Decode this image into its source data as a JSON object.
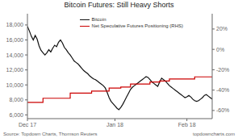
{
  "chart_data": {
    "type": "line",
    "title": "Bitcoin Futures: Still Heavy Shorts",
    "annotations": [
      "Source: Topdown Charts, Thomson Reuters",
      "topdowncharts.com"
    ],
    "xlim": [
      0,
      95
    ],
    "xticks": [
      {
        "value": 0,
        "label": "Dec 17"
      },
      {
        "value": 45,
        "label": "Jan 18"
      },
      {
        "value": 82,
        "label": "Feb 18"
      }
    ],
    "ylim": [
      5500,
      19500
    ],
    "yticks": [
      {
        "value": 6000,
        "label": "6,000"
      },
      {
        "value": 8000,
        "label": "8,000"
      },
      {
        "value": 10000,
        "label": "10,000"
      },
      {
        "value": 12000,
        "label": "12,000"
      },
      {
        "value": 14000,
        "label": "14,000"
      },
      {
        "value": 16000,
        "label": "16,000"
      },
      {
        "value": 18000,
        "label": "18,000"
      }
    ],
    "y2lim": [
      -68,
      35
    ],
    "y2ticks": [
      {
        "value": 20,
        "label": "20%"
      },
      {
        "value": 0,
        "label": "0%"
      },
      {
        "value": -20,
        "label": "-20%"
      },
      {
        "value": -40,
        "label": "-40%"
      },
      {
        "value": -60,
        "label": "-60%"
      }
    ],
    "legend": "upper right",
    "series": [
      {
        "name": "Bitcoin",
        "color": "#111111",
        "x": [
          0,
          1,
          2,
          3,
          4,
          5,
          6,
          7,
          8,
          9,
          10,
          11,
          12,
          13,
          14,
          15,
          16,
          17,
          18,
          19,
          20,
          21,
          22,
          23,
          24,
          25,
          26,
          27,
          28,
          29,
          30,
          31,
          32,
          33,
          34,
          35,
          36,
          37,
          38,
          39,
          40,
          41,
          42,
          43,
          44,
          45,
          46,
          47,
          48,
          49,
          50,
          51,
          52,
          53,
          54,
          55,
          56,
          57,
          58,
          59,
          60,
          61,
          62,
          63,
          64,
          65,
          66,
          67,
          68,
          69,
          70,
          71,
          72,
          73,
          74,
          75,
          76,
          77,
          78,
          79,
          80,
          81,
          82,
          83,
          84,
          85,
          86,
          87,
          88,
          89,
          90,
          91,
          92,
          93,
          94,
          95
        ],
        "values": [
          17800,
          17200,
          16500,
          16000,
          16600,
          16100,
          15200,
          14600,
          14300,
          14000,
          14300,
          14700,
          14400,
          14900,
          15300,
          15100,
          15700,
          16000,
          15600,
          15000,
          14700,
          14300,
          14000,
          13600,
          13200,
          13000,
          12800,
          12500,
          12200,
          11900,
          11700,
          11500,
          11200,
          11000,
          10800,
          10700,
          10500,
          10300,
          10100,
          9900,
          9600,
          9000,
          8300,
          7800,
          7500,
          7200,
          6900,
          6700,
          7000,
          7400,
          7900,
          8400,
          8900,
          9400,
          9700,
          9900,
          10100,
          10300,
          10500,
          10700,
          10900,
          11100,
          11000,
          10700,
          10400,
          10200,
          10000,
          9800,
          10400,
          10900,
          10700,
          10500,
          10200,
          9900,
          9700,
          9500,
          9300,
          9100,
          8900,
          8700,
          8500,
          8300,
          8400,
          8600,
          8400,
          8100,
          7900,
          7800,
          7900,
          8100,
          8300,
          8600,
          8700,
          8500,
          8300,
          8100
        ]
      },
      {
        "name": "Net Speculative Futures Positioning (RHS)",
        "color": "#cc0000",
        "axis": "y2",
        "type": "step",
        "x": [
          0,
          3,
          8,
          10,
          18,
          22,
          28,
          33,
          38,
          42,
          48,
          53,
          58,
          63,
          68,
          73,
          80,
          86,
          92,
          95
        ],
        "values": [
          -52,
          -52,
          -48,
          -48,
          -48,
          -43,
          -43,
          -41,
          -41,
          -38,
          -37,
          -34,
          -34,
          -32,
          -31,
          -29,
          -29,
          -27,
          -27,
          -27
        ]
      }
    ]
  }
}
